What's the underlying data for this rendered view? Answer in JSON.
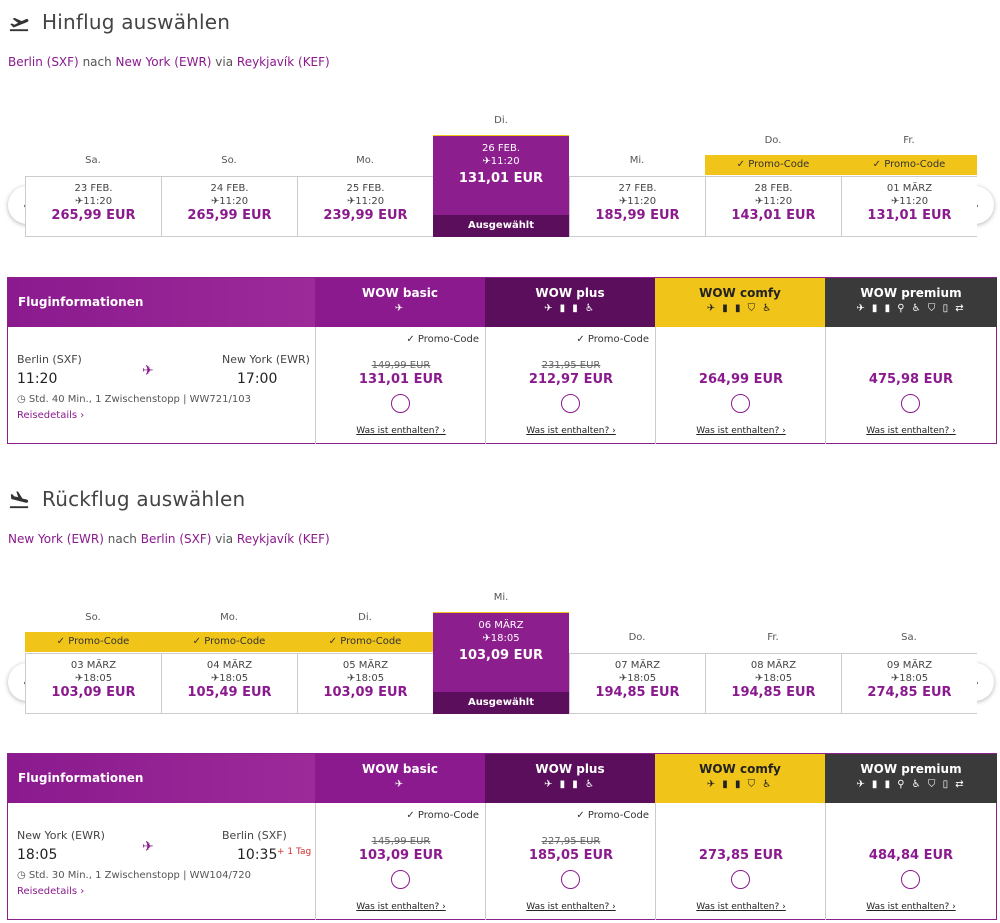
{
  "outbound": {
    "title": "Hinflug auswählen",
    "route": {
      "from": "Berlin (SXF)",
      "to": "New York (EWR)",
      "via": "Reykjavík (KEF)",
      "nach": " nach ",
      "via_word": " via "
    },
    "days": [
      {
        "dow": "Sa.",
        "date": "23 FEB.",
        "time": "11:20",
        "price": "265,99 EUR",
        "promo": false,
        "selected": false
      },
      {
        "dow": "So.",
        "date": "24 FEB.",
        "time": "11:20",
        "price": "265,99 EUR",
        "promo": false,
        "selected": false
      },
      {
        "dow": "Mo.",
        "date": "25 FEB.",
        "time": "11:20",
        "price": "239,99 EUR",
        "promo": false,
        "selected": false
      },
      {
        "dow": "Di.",
        "date": "26 FEB.",
        "time": "11:20",
        "price": "131,01 EUR",
        "promo": true,
        "selected": true
      },
      {
        "dow": "Mi.",
        "date": "27 FEB.",
        "time": "11:20",
        "price": "185,99 EUR",
        "promo": false,
        "selected": false
      },
      {
        "dow": "Do.",
        "date": "28 FEB.",
        "time": "11:20",
        "price": "143,01 EUR",
        "promo": true,
        "selected": false
      },
      {
        "dow": "Fr.",
        "date": "01 MÄRZ",
        "time": "11:20",
        "price": "131,01 EUR",
        "promo": true,
        "selected": false
      }
    ],
    "flight": {
      "from_city": "Berlin (SXF)",
      "to_city": "New York (EWR)",
      "dep": "11:20",
      "arr": "17:00",
      "nextday": "",
      "duration": "Std. 40 Min., 1 Zwischenstopp | WW721/103",
      "details": "Reisedetails ›"
    },
    "fares": [
      {
        "promo": "✓ Promo-Code",
        "old": "149,99 EUR",
        "price": "131,01 EUR"
      },
      {
        "promo": "✓ Promo-Code",
        "old": "231,95 EUR",
        "price": "212,97 EUR"
      },
      {
        "promo": "",
        "old": "",
        "price": "264,99 EUR"
      },
      {
        "promo": "",
        "old": "",
        "price": "475,98 EUR"
      }
    ]
  },
  "inbound": {
    "title": "Rückflug auswählen",
    "route": {
      "from": "New York (EWR)",
      "to": "Berlin (SXF)",
      "via": "Reykjavík (KEF)",
      "nach": " nach ",
      "via_word": " via "
    },
    "days": [
      {
        "dow": "So.",
        "date": "03 MÄRZ",
        "time": "18:05",
        "price": "103,09 EUR",
        "promo": true,
        "selected": false
      },
      {
        "dow": "Mo.",
        "date": "04 MÄRZ",
        "time": "18:05",
        "price": "105,49 EUR",
        "promo": true,
        "selected": false
      },
      {
        "dow": "Di.",
        "date": "05 MÄRZ",
        "time": "18:05",
        "price": "103,09 EUR",
        "promo": true,
        "selected": false
      },
      {
        "dow": "Mi.",
        "date": "06 MÄRZ",
        "time": "18:05",
        "price": "103,09 EUR",
        "promo": true,
        "selected": true
      },
      {
        "dow": "Do.",
        "date": "07 MÄRZ",
        "time": "18:05",
        "price": "194,85 EUR",
        "promo": false,
        "selected": false
      },
      {
        "dow": "Fr.",
        "date": "08 MÄRZ",
        "time": "18:05",
        "price": "194,85 EUR",
        "promo": false,
        "selected": false
      },
      {
        "dow": "Sa.",
        "date": "09 MÄRZ",
        "time": "18:05",
        "price": "274,85 EUR",
        "promo": false,
        "selected": false
      }
    ],
    "flight": {
      "from_city": "New York (EWR)",
      "to_city": "Berlin (SXF)",
      "dep": "18:05",
      "arr": "10:35",
      "nextday": "+ 1 Tag",
      "duration": "Std. 30 Min., 1 Zwischenstopp | WW104/720",
      "details": "Reisedetails ›"
    },
    "fares": [
      {
        "promo": "✓ Promo-Code",
        "old": "145,99 EUR",
        "price": "103,09 EUR"
      },
      {
        "promo": "✓ Promo-Code",
        "old": "227,95 EUR",
        "price": "185,05 EUR"
      },
      {
        "promo": "",
        "old": "",
        "price": "273,85 EUR"
      },
      {
        "promo": "",
        "old": "",
        "price": "484,84 EUR"
      }
    ]
  },
  "labels": {
    "promo": "✓ Promo-Code",
    "selected": "Ausgewählt",
    "flight_info": "Fluginformationen",
    "included": "Was ist enthalten? ›",
    "prev": "‹",
    "next": "›"
  },
  "fare_columns": [
    {
      "name": "WOW basic",
      "icons": "✈"
    },
    {
      "name": "WOW plus",
      "icons": "✈ ▮ ▮ ♿"
    },
    {
      "name": "WOW comfy",
      "icons": "✈ ▮ ▮ ⛉ ♿"
    },
    {
      "name": "WOW premium",
      "icons": "✈ ▮ ▮ ⚲ ♿ ⛉ ▯ ⇄"
    }
  ],
  "colors": {
    "brand": "#8a1a8e",
    "brand_dark": "#5a0e5b",
    "promo": "#f0c419",
    "premium": "#3a3a3a"
  }
}
